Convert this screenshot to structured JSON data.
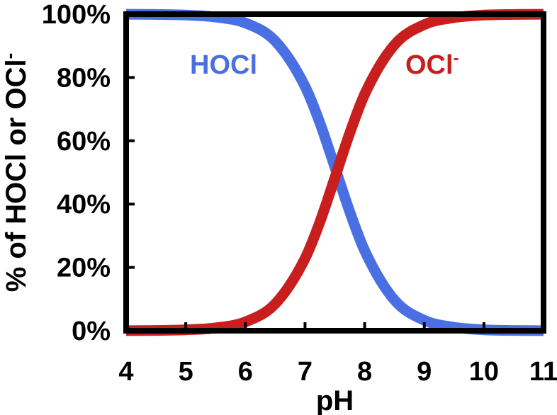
{
  "chart_data": {
    "type": "line",
    "title": "",
    "xlabel": "pH",
    "ylabel_parts": [
      "% of HOCl or OCl",
      "-"
    ],
    "xlim": [
      4,
      11
    ],
    "ylim": [
      0,
      100
    ],
    "x_ticks": [
      "4",
      "5",
      "6",
      "7",
      "8",
      "9",
      "10",
      "11"
    ],
    "y_ticks": [
      "0%",
      "20%",
      "40%",
      "60%",
      "80%",
      "100%"
    ],
    "grid": false,
    "legend": "none",
    "pKa": 7.53,
    "x": [
      4,
      4.5,
      5,
      5.5,
      6,
      6.5,
      7,
      7.25,
      7.5,
      7.75,
      8,
      8.5,
      9,
      9.5,
      10,
      10.5,
      11
    ],
    "series": [
      {
        "name": "HOCl",
        "label_parts": [
          "HOCl",
          ""
        ],
        "color": "#4a6fe3",
        "values": [
          99.97,
          99.9,
          99.7,
          99.1,
          97.2,
          91.5,
          77.2,
          65.6,
          51.7,
          37.6,
          25.3,
          9.7,
          3.3,
          1.1,
          0.3,
          0.1,
          0.03
        ]
      },
      {
        "name": "OCl-",
        "label_parts": [
          "OCl",
          "-"
        ],
        "color": "#c81e1e",
        "values": [
          0.03,
          0.1,
          0.3,
          0.9,
          2.8,
          8.5,
          22.8,
          34.4,
          48.3,
          62.4,
          74.7,
          90.3,
          96.7,
          98.9,
          99.7,
          99.9,
          99.97
        ]
      }
    ]
  }
}
